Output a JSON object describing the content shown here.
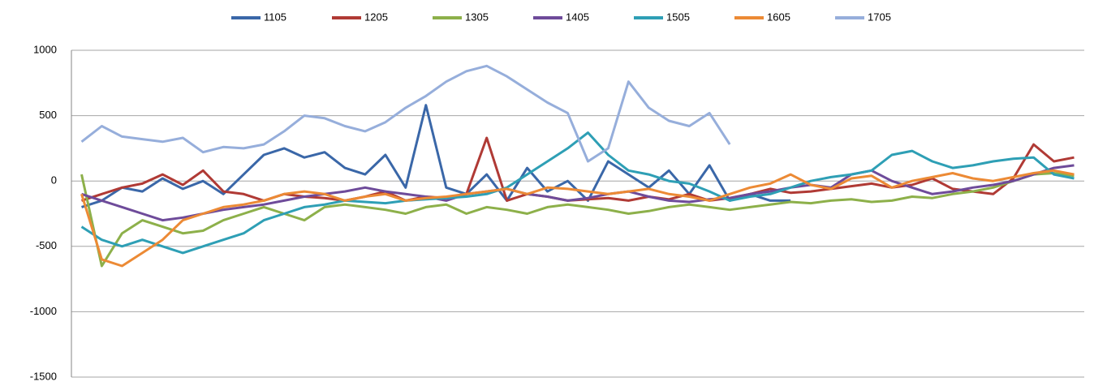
{
  "chart_data": {
    "type": "line",
    "categories": [
      null,
      null,
      null,
      null,
      null,
      null,
      null,
      null,
      null,
      null,
      null,
      null,
      null,
      null,
      null,
      null,
      null,
      null,
      null,
      null,
      null,
      null,
      null,
      null,
      null,
      null,
      null,
      null,
      null,
      null,
      null,
      null,
      null,
      null,
      null,
      null,
      null,
      null,
      null,
      null,
      null,
      null,
      null,
      null,
      null,
      null,
      null,
      null,
      null,
      null
    ],
    "series": [
      {
        "name": "1105",
        "color": "#3a67a8",
        "values": [
          -200,
          -150,
          -50,
          -80,
          20,
          -60,
          0,
          -100,
          50,
          200,
          250,
          180,
          220,
          100,
          50,
          200,
          -50,
          580,
          -50,
          -100,
          50,
          -150,
          100,
          -80,
          0,
          -150,
          150,
          50,
          -50,
          80,
          -100,
          120,
          -150,
          -100,
          -150,
          -150,
          null,
          null,
          null,
          null,
          null,
          null,
          null,
          null,
          null,
          null,
          null,
          null,
          null,
          null
        ]
      },
      {
        "name": "1205",
        "color": "#b03a35",
        "values": [
          -150,
          -100,
          -50,
          -20,
          50,
          -30,
          80,
          -80,
          -100,
          -150,
          -100,
          -120,
          -130,
          -150,
          -120,
          -80,
          -150,
          -120,
          -130,
          -100,
          330,
          -150,
          -100,
          -120,
          -150,
          -140,
          -130,
          -150,
          -120,
          -140,
          -100,
          -150,
          -130,
          -100,
          -60,
          -90,
          -80,
          -60,
          -40,
          -20,
          -50,
          -30,
          20,
          -60,
          -80,
          -100,
          20,
          280,
          150,
          180
        ]
      },
      {
        "name": "1305",
        "color": "#8db04a",
        "values": [
          50,
          -650,
          -400,
          -300,
          -350,
          -400,
          -380,
          -300,
          -250,
          -200,
          -250,
          -300,
          -200,
          -180,
          -200,
          -220,
          -250,
          -200,
          -180,
          -250,
          -200,
          -220,
          -250,
          -200,
          -180,
          -200,
          -220,
          -250,
          -230,
          -200,
          -180,
          -200,
          -220,
          -200,
          -180,
          -160,
          -170,
          -150,
          -140,
          -160,
          -150,
          -120,
          -130,
          -100,
          -80,
          -50,
          0,
          50,
          60,
          40
        ]
      },
      {
        "name": "1405",
        "color": "#6e4b9a",
        "values": [
          -100,
          -150,
          -200,
          -250,
          -300,
          -280,
          -250,
          -220,
          -200,
          -180,
          -150,
          -120,
          -100,
          -80,
          -50,
          -80,
          -100,
          -120,
          -150,
          -100,
          -80,
          -60,
          -100,
          -120,
          -150,
          -130,
          -100,
          -80,
          -120,
          -150,
          -160,
          -140,
          -130,
          -100,
          -80,
          -50,
          -30,
          -50,
          50,
          80,
          0,
          -50,
          -100,
          -80,
          -50,
          -30,
          0,
          50,
          100,
          120
        ]
      },
      {
        "name": "1505",
        "color": "#2e9fb5",
        "values": [
          -350,
          -450,
          -500,
          -450,
          -500,
          -550,
          -500,
          -450,
          -400,
          -300,
          -250,
          -200,
          -180,
          -150,
          -160,
          -170,
          -150,
          -140,
          -130,
          -120,
          -100,
          -50,
          50,
          150,
          250,
          370,
          200,
          80,
          50,
          0,
          -20,
          -80,
          -150,
          -120,
          -100,
          -50,
          0,
          30,
          50,
          80,
          200,
          230,
          150,
          100,
          120,
          150,
          170,
          180,
          50,
          20
        ]
      },
      {
        "name": "1605",
        "color": "#ec8a35",
        "values": [
          -100,
          -600,
          -650,
          -550,
          -450,
          -300,
          -250,
          -200,
          -180,
          -150,
          -100,
          -80,
          -100,
          -150,
          -120,
          -100,
          -150,
          -130,
          -120,
          -100,
          -80,
          -60,
          -100,
          -50,
          -60,
          -80,
          -100,
          -80,
          -60,
          -100,
          -120,
          -150,
          -100,
          -50,
          -20,
          50,
          -30,
          -60,
          20,
          40,
          -50,
          0,
          30,
          60,
          20,
          0,
          30,
          60,
          80,
          50
        ]
      },
      {
        "name": "1705",
        "color": "#96aedb",
        "values": [
          300,
          420,
          340,
          320,
          300,
          330,
          220,
          260,
          250,
          280,
          380,
          500,
          480,
          420,
          380,
          450,
          560,
          650,
          760,
          840,
          880,
          800,
          700,
          600,
          520,
          150,
          250,
          760,
          560,
          460,
          420,
          520,
          280,
          null,
          null,
          null,
          null,
          null,
          null,
          null,
          null,
          null,
          null,
          null,
          null,
          null,
          null,
          null,
          null,
          null
        ]
      }
    ],
    "ylim": [
      -1500,
      1000
    ],
    "yticks": [
      -1500,
      -1000,
      -500,
      0,
      500,
      1000
    ],
    "grid": true,
    "legend": "top"
  }
}
